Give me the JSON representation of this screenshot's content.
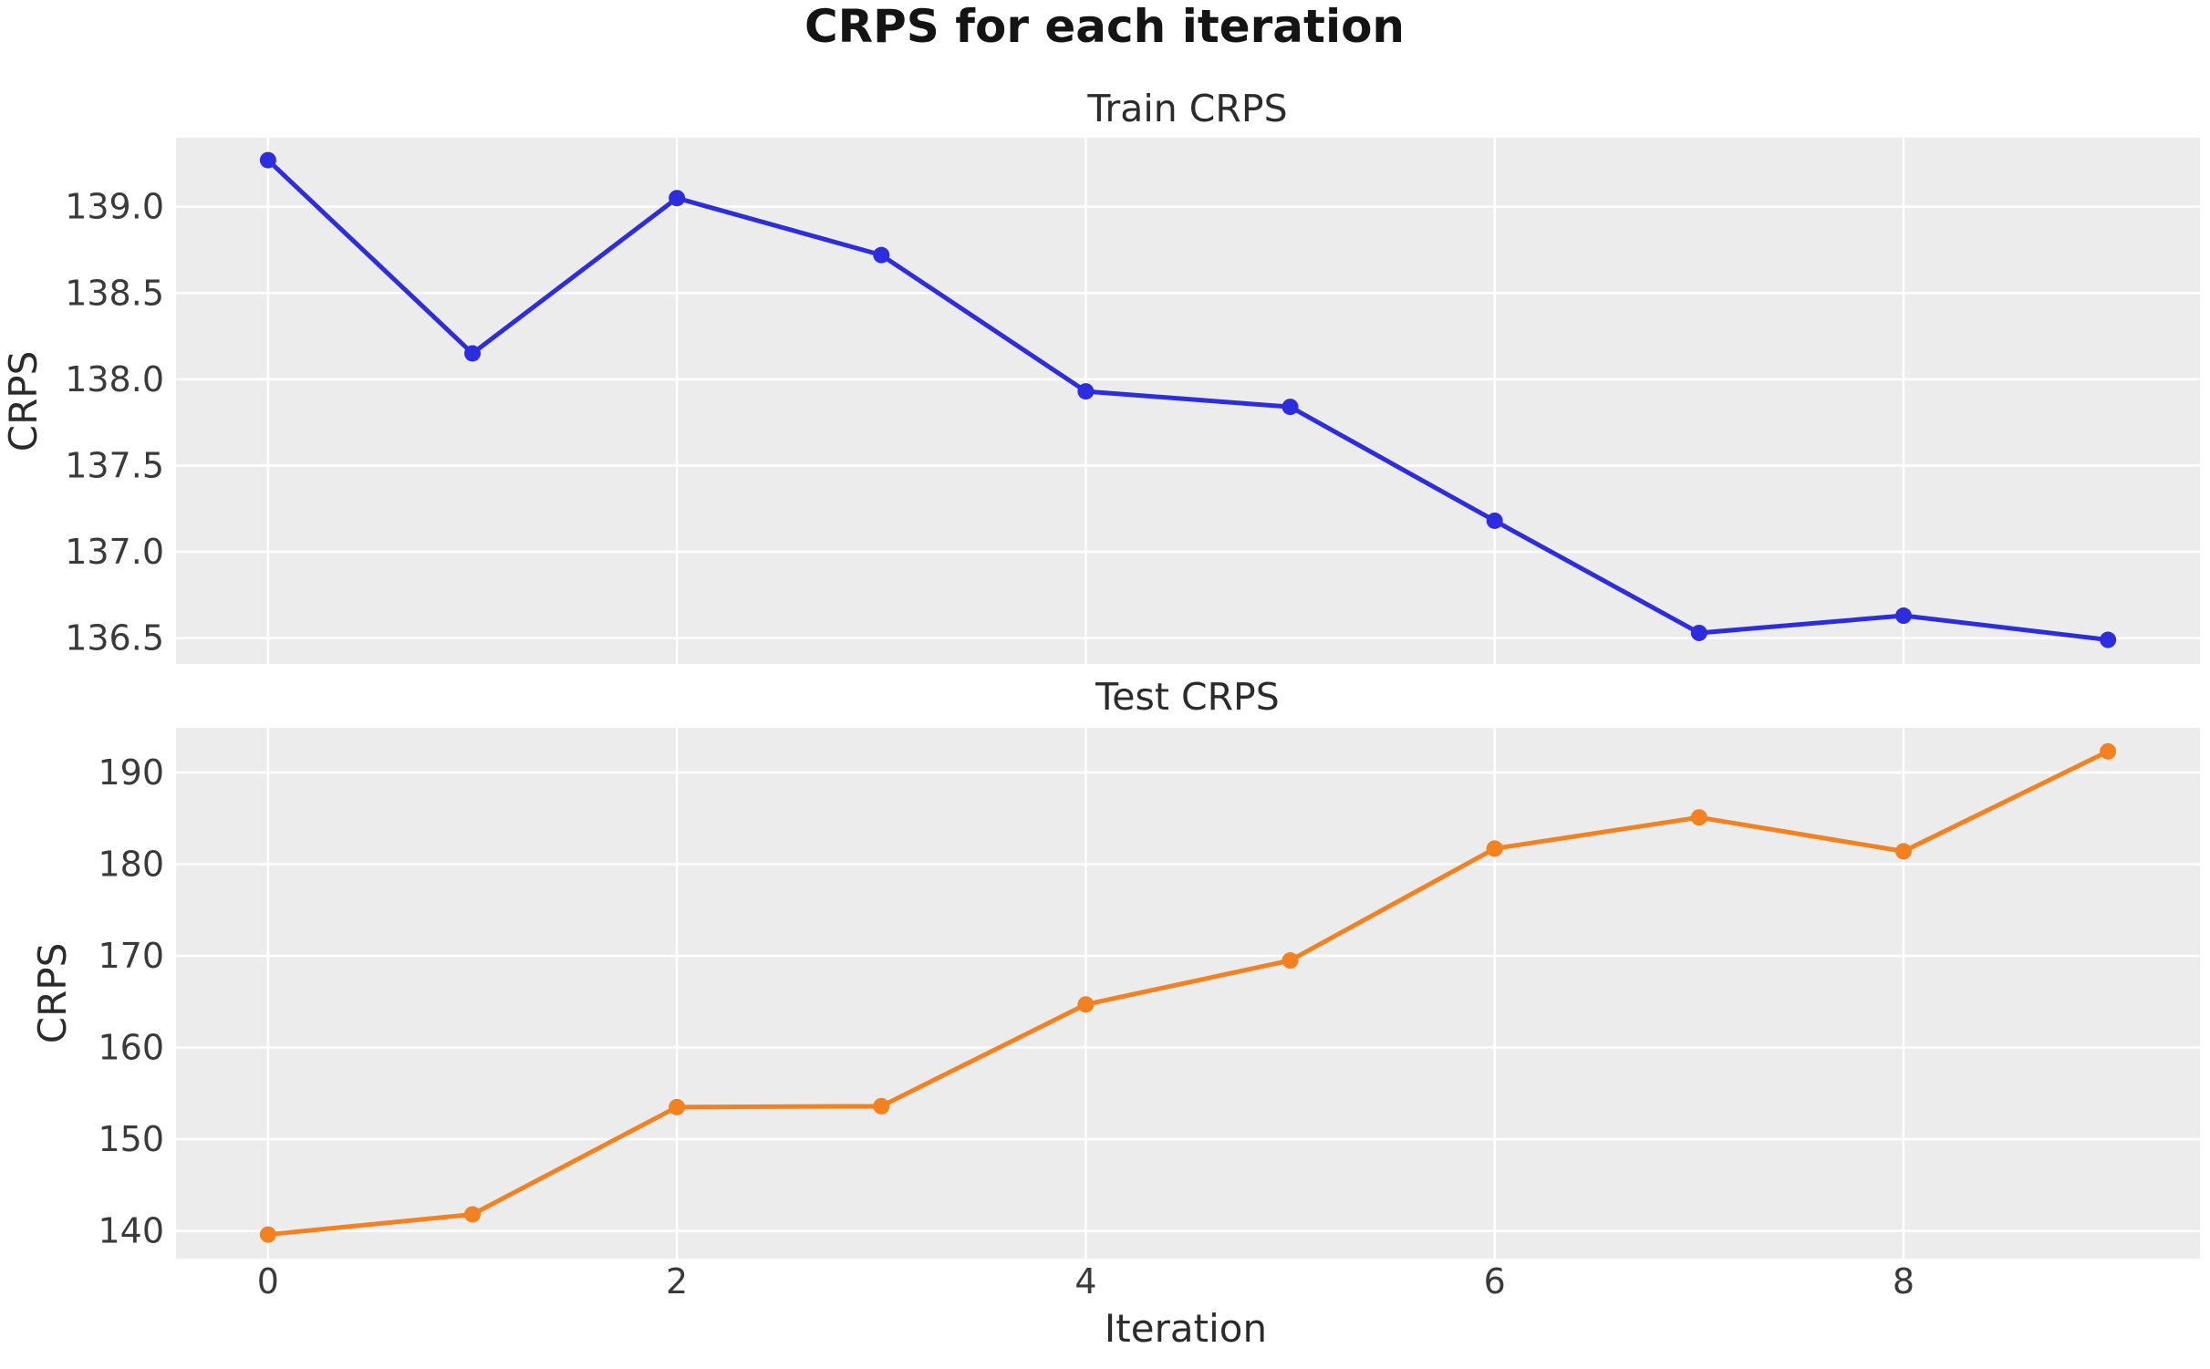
{
  "figure": {
    "suptitle": "CRPS for each iteration",
    "xlabel": "Iteration",
    "background": "#ffffff",
    "panel_background": "#ececec",
    "gridline_color": "#ffffff"
  },
  "chart_data": [
    {
      "type": "line",
      "title": "Train CRPS",
      "ylabel": "CRPS",
      "grid": true,
      "legend": "none",
      "xlim": [
        -0.45,
        9.45
      ],
      "ylim": [
        136.35,
        139.4
      ],
      "xticks": {
        "values": [
          0,
          2,
          4,
          6,
          8
        ],
        "labels": [
          "0",
          "2",
          "4",
          "6",
          "8"
        ],
        "show_labels": false
      },
      "yticks": {
        "values": [
          139.0,
          138.5,
          138.0,
          137.5,
          137.0,
          136.5
        ],
        "labels": [
          "139.0",
          "138.5",
          "138.0",
          "137.5",
          "137.0",
          "136.5"
        ]
      },
      "series": [
        {
          "name": "Train CRPS",
          "color": "#2d2de0",
          "marker": "circle",
          "x": [
            0,
            1,
            2,
            3,
            4,
            5,
            6,
            7,
            8,
            9
          ],
          "values": [
            139.27,
            138.15,
            139.05,
            138.72,
            137.93,
            137.84,
            137.18,
            136.53,
            136.63,
            136.49
          ]
        }
      ]
    },
    {
      "type": "line",
      "title": "Test CRPS",
      "ylabel": "CRPS",
      "grid": true,
      "legend": "none",
      "xlim": [
        -0.45,
        9.45
      ],
      "ylim": [
        136.97,
        194.87
      ],
      "xticks": {
        "values": [
          0,
          2,
          4,
          6,
          8
        ],
        "labels": [
          "0",
          "2",
          "4",
          "6",
          "8"
        ],
        "show_labels": true
      },
      "yticks": {
        "values": [
          190,
          180,
          170,
          160,
          150,
          140
        ],
        "labels": [
          "190",
          "180",
          "170",
          "160",
          "150",
          "140"
        ]
      },
      "series": [
        {
          "name": "Test CRPS",
          "color": "#f48120",
          "marker": "circle",
          "x": [
            0,
            1,
            2,
            3,
            4,
            5,
            6,
            7,
            8,
            9
          ],
          "values": [
            139.6,
            141.8,
            153.5,
            153.6,
            164.7,
            169.5,
            181.7,
            185.1,
            181.4,
            192.3
          ]
        }
      ]
    }
  ]
}
